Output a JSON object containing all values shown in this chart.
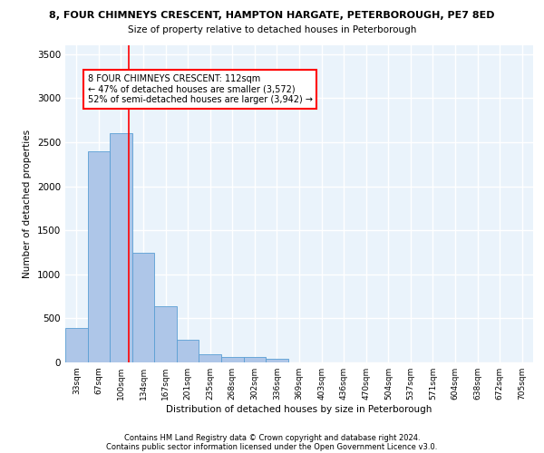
{
  "title_line1": "8, FOUR CHIMNEYS CRESCENT, HAMPTON HARGATE, PETERBOROUGH, PE7 8ED",
  "title_line2": "Size of property relative to detached houses in Peterborough",
  "xlabel": "Distribution of detached houses by size in Peterborough",
  "ylabel": "Number of detached properties",
  "categories": [
    "33sqm",
    "67sqm",
    "100sqm",
    "134sqm",
    "167sqm",
    "201sqm",
    "235sqm",
    "268sqm",
    "302sqm",
    "336sqm",
    "369sqm",
    "403sqm",
    "436sqm",
    "470sqm",
    "504sqm",
    "537sqm",
    "571sqm",
    "604sqm",
    "638sqm",
    "672sqm",
    "705sqm"
  ],
  "values": [
    390,
    2400,
    2600,
    1240,
    640,
    255,
    95,
    65,
    60,
    40,
    0,
    0,
    0,
    0,
    0,
    0,
    0,
    0,
    0,
    0,
    0
  ],
  "bar_color": "#aec6e8",
  "bar_edge_color": "#5a9fd4",
  "vline_color": "red",
  "vline_x": 2.36,
  "annotation_text": "8 FOUR CHIMNEYS CRESCENT: 112sqm\n← 47% of detached houses are smaller (3,572)\n52% of semi-detached houses are larger (3,942) →",
  "annotation_box_color": "white",
  "annotation_box_edge": "red",
  "ylim": [
    0,
    3600
  ],
  "yticks": [
    0,
    500,
    1000,
    1500,
    2000,
    2500,
    3000,
    3500
  ],
  "background_color": "#eaf3fb",
  "grid_color": "white",
  "footer_line1": "Contains HM Land Registry data © Crown copyright and database right 2024.",
  "footer_line2": "Contains public sector information licensed under the Open Government Licence v3.0."
}
